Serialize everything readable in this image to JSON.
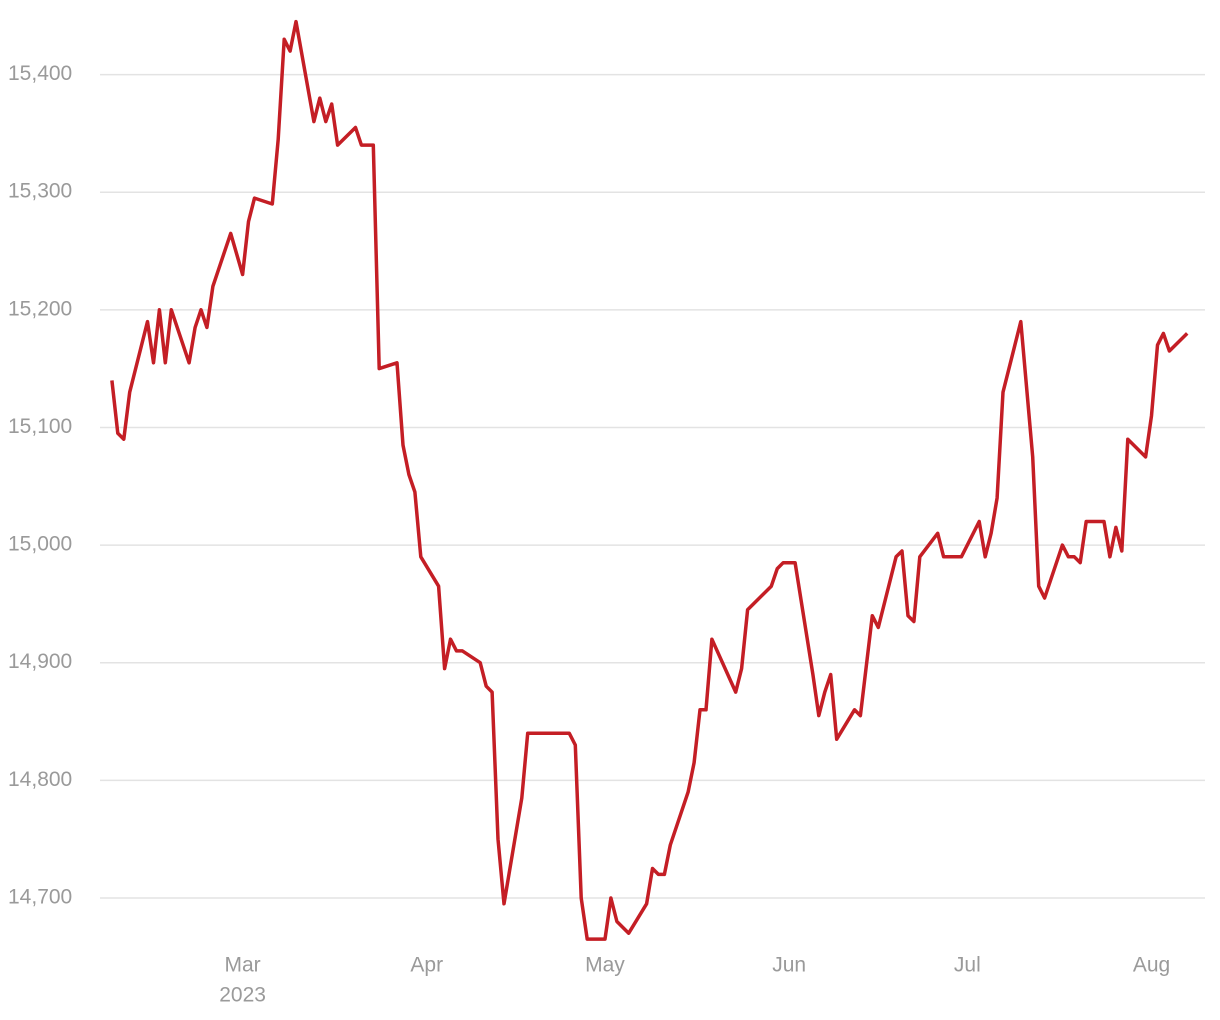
{
  "chart_data": {
    "type": "line",
    "x": [
      38,
      39,
      40,
      41,
      44,
      45,
      46,
      47,
      48,
      51,
      52,
      53,
      54,
      55,
      58,
      60,
      61,
      62,
      65,
      66,
      67,
      68,
      69,
      72,
      73,
      74,
      75,
      76,
      79,
      80,
      82,
      83,
      86,
      87,
      88,
      89,
      90,
      93,
      94,
      95,
      96,
      97,
      100,
      101,
      102,
      103,
      104,
      107,
      108,
      115,
      116,
      117,
      118,
      121,
      122,
      123,
      125,
      128,
      129,
      130,
      131,
      132,
      135,
      136,
      137,
      138,
      139,
      143,
      144,
      145,
      149,
      150,
      151,
      153,
      156,
      157,
      158,
      159,
      160,
      163,
      164,
      166,
      167,
      170,
      171,
      172,
      173,
      174,
      177,
      178,
      181,
      184,
      185,
      186,
      187,
      188,
      191,
      193,
      194,
      195,
      198,
      199,
      200,
      201,
      202,
      205,
      206,
      207,
      208,
      209,
      212,
      213,
      214,
      215,
      216,
      219
    ],
    "series": [
      {
        "color": "#c41e25",
        "values": [
          15140,
          15095,
          15090,
          15130,
          15190,
          15155,
          15200,
          15155,
          15200,
          15155,
          15185,
          15200,
          15185,
          15220,
          15265,
          15230,
          15275,
          15295,
          15290,
          15345,
          15430,
          15420,
          15445,
          15360,
          15380,
          15360,
          15375,
          15340,
          15355,
          15340,
          15340,
          15150,
          15155,
          15085,
          15060,
          15045,
          14990,
          14965,
          14895,
          14920,
          14910,
          14910,
          14900,
          14880,
          14875,
          14750,
          14695,
          14785,
          14840,
          14840,
          14830,
          14700,
          14665,
          14665,
          14700,
          14680,
          14670,
          14695,
          14725,
          14720,
          14720,
          14745,
          14790,
          14815,
          14860,
          14860,
          14920,
          14875,
          14895,
          14945,
          14965,
          14980,
          14985,
          14985,
          14890,
          14855,
          14875,
          14890,
          14835,
          14860,
          14855,
          14940,
          14930,
          14990,
          14995,
          14940,
          14935,
          14990,
          15010,
          14990,
          14990,
          15020,
          14990,
          15010,
          15040,
          15130,
          15190,
          15075,
          14965,
          14955,
          15000,
          14990,
          14990,
          14985,
          15020,
          15020,
          14990,
          15015,
          14995,
          15090,
          15075,
          15110,
          15170,
          15180,
          15165,
          15180
        ]
      }
    ],
    "xlim": [
      36,
      222
    ],
    "xticks": [
      {
        "value": 60,
        "label": "Mar"
      },
      {
        "value": 91,
        "label": "Apr"
      },
      {
        "value": 121,
        "label": "May"
      },
      {
        "value": 152,
        "label": "Jun"
      },
      {
        "value": 182,
        "label": "Jul"
      },
      {
        "value": 213,
        "label": "Aug"
      }
    ],
    "x_year_label": "2023",
    "ylim": [
      14660,
      15460
    ],
    "yticks": [
      {
        "value": 14700,
        "label": "14,700"
      },
      {
        "value": 14800,
        "label": "14,800"
      },
      {
        "value": 14900,
        "label": "14,900"
      },
      {
        "value": 15000,
        "label": "15,000"
      },
      {
        "value": 15100,
        "label": "15,100"
      },
      {
        "value": 15200,
        "label": "15,200"
      },
      {
        "value": 15300,
        "label": "15,300"
      },
      {
        "value": 15400,
        "label": "15,400"
      }
    ],
    "grid": true
  }
}
